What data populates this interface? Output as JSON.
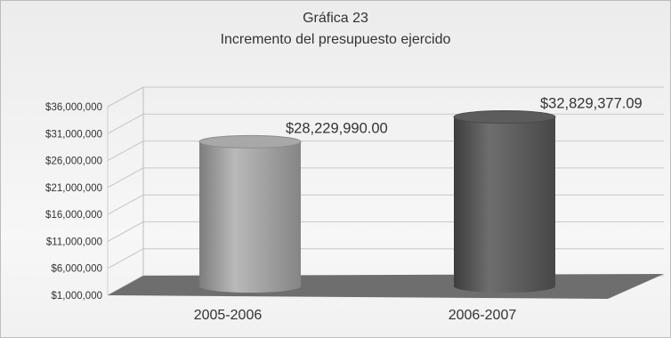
{
  "chart_data": {
    "type": "bar",
    "title": "Gráfica 23",
    "subtitle": "Incremento del presupuesto ejercido",
    "categories": [
      "2005-2006",
      "2006-2007"
    ],
    "values": [
      28229990.0,
      32829377.09
    ],
    "value_labels": [
      "$28,229,990.00",
      "$32,829,377.09"
    ],
    "y_ticks": [
      1000000,
      6000000,
      11000000,
      16000000,
      21000000,
      26000000,
      31000000,
      36000000
    ],
    "y_tick_labels": [
      "$1,000,000",
      "$6,000,000",
      "$11,000,000",
      "$16,000,000",
      "$21,000,000",
      "$26,000,000",
      "$31,000,000",
      "$36,000,000"
    ],
    "ylim": [
      1000000,
      36000000
    ],
    "xlabel": "",
    "ylabel": "",
    "grid": true,
    "style": "3d-cylinder",
    "colors": [
      "#9a9a9a",
      "#5a5a5a"
    ],
    "floor_color": "#6e6e6e"
  }
}
